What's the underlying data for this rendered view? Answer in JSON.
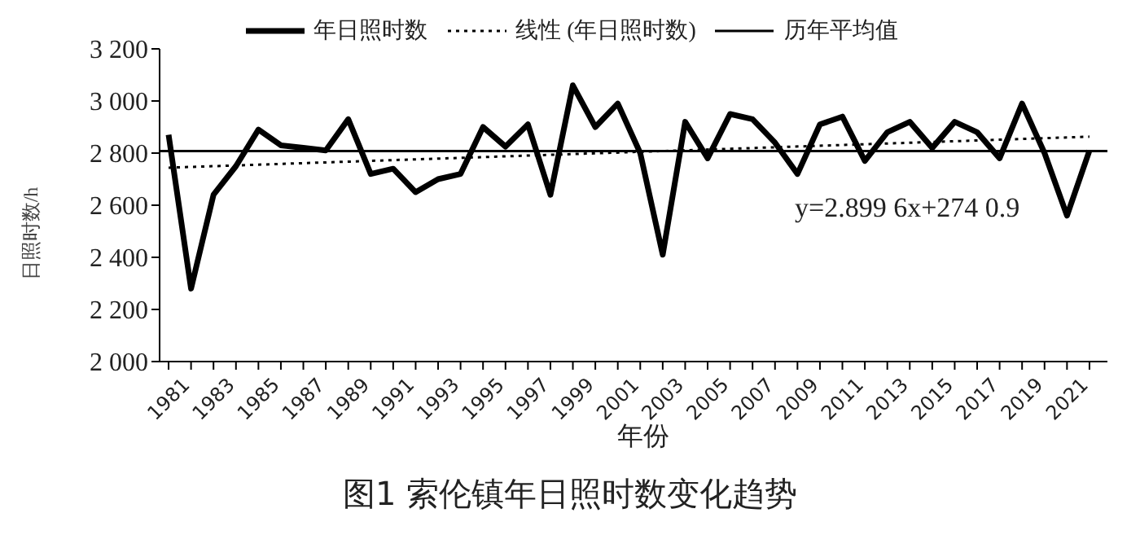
{
  "chart_data": {
    "type": "line",
    "title": "图1  索伦镇年日照时数变化趋势",
    "xlabel": "年份",
    "ylabel": "日照时数/h",
    "x": [
      1981,
      1982,
      1983,
      1984,
      1985,
      1986,
      1987,
      1988,
      1989,
      1990,
      1991,
      1992,
      1993,
      1994,
      1995,
      1996,
      1997,
      1998,
      1999,
      2000,
      2001,
      2002,
      2003,
      2004,
      2005,
      2006,
      2007,
      2008,
      2009,
      2010,
      2011,
      2012,
      2013,
      2014,
      2015,
      2016,
      2017,
      2018,
      2019,
      2020,
      2021,
      2022
    ],
    "series": [
      {
        "name": "年日照时数",
        "color": "#000000",
        "line_style": "solid",
        "values": [
          2870,
          2280,
          2640,
          2750,
          2890,
          2830,
          2820,
          2810,
          2930,
          2720,
          2740,
          2650,
          2700,
          2720,
          2900,
          2825,
          2910,
          2640,
          3060,
          2900,
          2990,
          2800,
          2410,
          2920,
          2780,
          2950,
          2930,
          2840,
          2720,
          2910,
          2940,
          2770,
          2880,
          2920,
          2820,
          2920,
          2880,
          2780,
          2990,
          2800,
          2560,
          2810
        ]
      },
      {
        "name": "线性 (年日照时数)",
        "color": "#000000",
        "line_style": "dotted",
        "x": [
          1981,
          2022
        ],
        "values": [
          2744,
          2863
        ]
      }
    ],
    "ref_lines": [
      {
        "axis": "y",
        "value": 2808,
        "label": "历年平均值",
        "color": "#000000",
        "line_style": "solid"
      }
    ],
    "annotations": [
      "y=2.899 6x+274 0.9"
    ],
    "xlim": [
      1980.6,
      2022.8
    ],
    "xticks": [
      {
        "value": 1981,
        "label": "1981"
      },
      {
        "value": 1982,
        "label": null
      },
      {
        "value": 1983,
        "label": "1983"
      },
      {
        "value": 1984,
        "label": null
      },
      {
        "value": 1985,
        "label": "1985"
      },
      {
        "value": 1986,
        "label": null
      },
      {
        "value": 1987,
        "label": "1987"
      },
      {
        "value": 1988,
        "label": null
      },
      {
        "value": 1989,
        "label": "1989"
      },
      {
        "value": 1990,
        "label": null
      },
      {
        "value": 1991,
        "label": "1991"
      },
      {
        "value": 1992,
        "label": null
      },
      {
        "value": 1993,
        "label": "1993"
      },
      {
        "value": 1994,
        "label": null
      },
      {
        "value": 1995,
        "label": "1995"
      },
      {
        "value": 1996,
        "label": null
      },
      {
        "value": 1997,
        "label": "1997"
      },
      {
        "value": 1998,
        "label": null
      },
      {
        "value": 1999,
        "label": "1999"
      },
      {
        "value": 2000,
        "label": null
      },
      {
        "value": 2001,
        "label": "2001"
      },
      {
        "value": 2002,
        "label": null
      },
      {
        "value": 2003,
        "label": "2003"
      },
      {
        "value": 2004,
        "label": null
      },
      {
        "value": 2005,
        "label": "2005"
      },
      {
        "value": 2006,
        "label": null
      },
      {
        "value": 2007,
        "label": "2007"
      },
      {
        "value": 2008,
        "label": null
      },
      {
        "value": 2009,
        "label": "2009"
      },
      {
        "value": 2010,
        "label": null
      },
      {
        "value": 2011,
        "label": "2011"
      },
      {
        "value": 2012,
        "label": null
      },
      {
        "value": 2013,
        "label": "2013"
      },
      {
        "value": 2014,
        "label": null
      },
      {
        "value": 2015,
        "label": "2015"
      },
      {
        "value": 2016,
        "label": null
      },
      {
        "value": 2017,
        "label": "2017"
      },
      {
        "value": 2018,
        "label": null
      },
      {
        "value": 2019,
        "label": "2019"
      },
      {
        "value": 2020,
        "label": null
      },
      {
        "value": 2021,
        "label": "2021"
      },
      {
        "value": 2022,
        "label": null
      }
    ],
    "ylim": [
      2000,
      3200
    ],
    "yticks": [
      {
        "value": 2000,
        "label": "2 000"
      },
      {
        "value": 2200,
        "label": "2 200"
      },
      {
        "value": 2400,
        "label": "2 400"
      },
      {
        "value": 2600,
        "label": "2 600"
      },
      {
        "value": 2800,
        "label": "2 800"
      },
      {
        "value": 3000,
        "label": "3 000"
      },
      {
        "value": 3200,
        "label": "3 200"
      }
    ],
    "legend": "top",
    "marker": "none",
    "grid": false
  }
}
